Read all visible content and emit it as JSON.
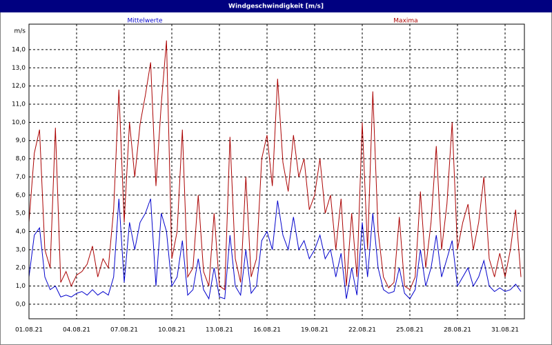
{
  "chart_data": {
    "type": "line",
    "title": "Windgeschwindigkeit [m/s]",
    "y_unit_label": "m/s",
    "categories": [
      "01.08.21",
      null,
      null,
      null,
      null,
      null,
      null,
      null,
      null,
      "04.08.21",
      null,
      null,
      null,
      null,
      null,
      null,
      null,
      null,
      "07.08.21",
      null,
      null,
      null,
      null,
      null,
      null,
      null,
      null,
      "10.08.21",
      null,
      null,
      null,
      null,
      null,
      null,
      null,
      null,
      "13.08.21",
      null,
      null,
      null,
      null,
      null,
      null,
      null,
      null,
      "16.08.21",
      null,
      null,
      null,
      null,
      null,
      null,
      null,
      null,
      "19.08.21",
      null,
      null,
      null,
      null,
      null,
      null,
      null,
      null,
      "22.08.21",
      null,
      null,
      null,
      null,
      null,
      null,
      null,
      null,
      "25.08.21",
      null,
      null,
      null,
      null,
      null,
      null,
      null,
      null,
      "28.08.21",
      null,
      null,
      null,
      null,
      null,
      null,
      null,
      null,
      "31.08.21",
      null,
      null,
      null
    ],
    "series": [
      {
        "name": "Mittelwerte",
        "color": "#0000cc",
        "values": [
          1.5,
          3.8,
          4.2,
          1.5,
          0.8,
          1.0,
          0.4,
          0.5,
          0.4,
          0.6,
          0.7,
          0.5,
          0.8,
          0.5,
          0.7,
          0.5,
          1.5,
          5.8,
          1.2,
          4.5,
          3.0,
          4.5,
          5.0,
          5.8,
          1.0,
          5.0,
          4.0,
          1.0,
          1.5,
          3.5,
          0.5,
          0.8,
          2.5,
          0.8,
          0.3,
          2.0,
          0.4,
          0.3,
          3.8,
          1.0,
          0.5,
          3.0,
          0.6,
          1.0,
          3.5,
          4.0,
          3.0,
          5.7,
          3.8,
          3.0,
          4.8,
          3.0,
          3.5,
          2.5,
          3.0,
          3.8,
          2.5,
          3.0,
          1.5,
          2.8,
          0.3,
          2.0,
          0.5,
          4.5,
          1.5,
          5.0,
          2.0,
          0.8,
          0.6,
          0.7,
          2.0,
          0.6,
          0.3,
          0.8,
          3.0,
          1.0,
          2.0,
          3.8,
          1.5,
          2.5,
          3.5,
          1.0,
          1.5,
          2.0,
          1.0,
          1.5,
          2.4,
          1.0,
          0.7,
          0.9,
          0.7,
          0.8,
          1.1,
          0.7
        ]
      },
      {
        "name": "Maxima",
        "color": "#aa0000",
        "values": [
          4.5,
          8.3,
          9.6,
          3.0,
          2.0,
          9.7,
          1.2,
          1.8,
          1.0,
          1.6,
          1.8,
          2.2,
          3.2,
          1.5,
          2.5,
          2.0,
          5.2,
          11.8,
          4.5,
          10.0,
          7.0,
          9.9,
          11.5,
          13.3,
          6.5,
          11.0,
          14.5,
          2.5,
          4.0,
          9.6,
          1.5,
          2.0,
          6.0,
          1.8,
          1.0,
          5.0,
          1.0,
          0.8,
          9.2,
          2.5,
          1.2,
          7.0,
          1.5,
          2.5,
          8.0,
          9.3,
          6.5,
          12.4,
          7.8,
          6.2,
          9.3,
          7.0,
          8.0,
          5.2,
          6.0,
          8.0,
          5.0,
          6.0,
          3.0,
          5.8,
          1.0,
          5.0,
          1.5,
          10.0,
          3.0,
          11.7,
          4.0,
          1.5,
          0.9,
          1.2,
          4.8,
          1.0,
          0.8,
          1.5,
          6.2,
          2.0,
          4.5,
          8.7,
          3.0,
          5.5,
          10.0,
          3.0,
          4.5,
          5.5,
          3.0,
          4.5,
          7.0,
          2.5,
          1.5,
          2.8,
          1.5,
          3.0,
          5.2,
          1.5
        ]
      }
    ],
    "ylim": [
      -0.8,
      15.4
    ],
    "yticks": [
      {
        "value": 0,
        "label": "0,0"
      },
      {
        "value": 1,
        "label": "1,0"
      },
      {
        "value": 2,
        "label": "2,0"
      },
      {
        "value": 3,
        "label": "3,0"
      },
      {
        "value": 4,
        "label": "4,0"
      },
      {
        "value": 5,
        "label": "5,0"
      },
      {
        "value": 6,
        "label": "6,0"
      },
      {
        "value": 7,
        "label": "7,0"
      },
      {
        "value": 8,
        "label": "8,0"
      },
      {
        "value": 9,
        "label": "9,0"
      },
      {
        "value": 10,
        "label": "10,0"
      },
      {
        "value": 11,
        "label": "11,0"
      },
      {
        "value": 12,
        "label": "12,0"
      },
      {
        "value": 13,
        "label": "13,0"
      },
      {
        "value": 14,
        "label": "14,0"
      }
    ],
    "grid": true
  }
}
